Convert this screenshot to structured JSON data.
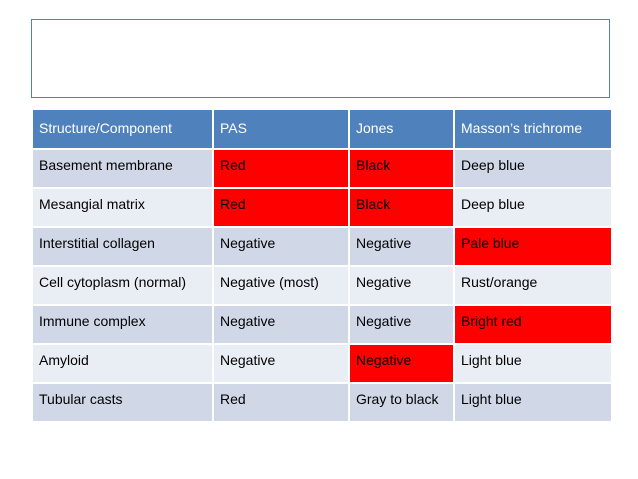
{
  "title_box": {
    "text": ""
  },
  "table": {
    "headers": [
      "Structure/Component",
      "PAS",
      "Jones",
      "Masson’s trichrome"
    ],
    "rows": [
      {
        "cells": [
          "Basement membrane",
          "Red",
          " Black",
          "Deep blue"
        ],
        "highlighted": [
          false,
          true,
          true,
          false
        ]
      },
      {
        "cells": [
          "Mesangial matrix",
          "Red",
          "Black",
          "Deep blue"
        ],
        "highlighted": [
          false,
          true,
          true,
          false
        ]
      },
      {
        "cells": [
          "Interstitial collagen",
          "Negative",
          "Negative",
          "Pale blue"
        ],
        "highlighted": [
          false,
          false,
          false,
          true
        ]
      },
      {
        "cells": [
          "Cell cytoplasm (normal)",
          "Negative (most)",
          "Negative",
          "Rust/orange"
        ],
        "highlighted": [
          false,
          false,
          false,
          false
        ]
      },
      {
        "cells": [
          "Immune complex",
          "Negative",
          "Negative",
          "Bright red"
        ],
        "highlighted": [
          false,
          false,
          false,
          true
        ]
      },
      {
        "cells": [
          "Amyloid",
          "Negative",
          "Negative",
          "Light blue"
        ],
        "highlighted": [
          false,
          false,
          true,
          false
        ]
      },
      {
        "cells": [
          "Tubular casts",
          "Red",
          "Gray to black",
          "Light blue"
        ],
        "highlighted": [
          false,
          false,
          false,
          false
        ]
      }
    ]
  },
  "colors": {
    "header_bg": "#4f81bd",
    "row_odd_bg": "#d0d8e8",
    "row_even_bg": "#e9edf4",
    "highlight_bg": "#ff0000"
  }
}
